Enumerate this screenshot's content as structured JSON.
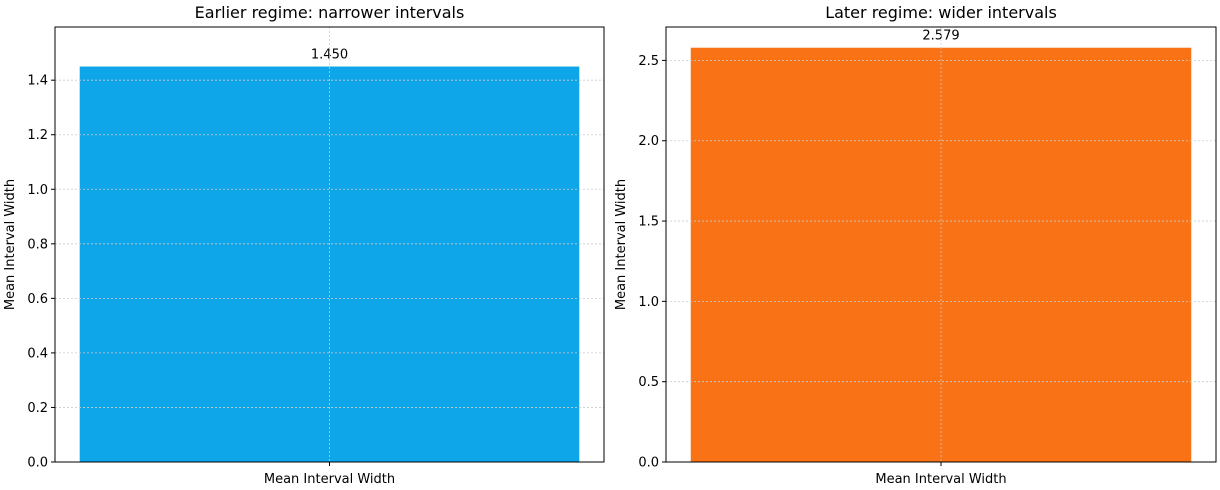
{
  "chart_data": [
    {
      "type": "bar",
      "title": "Earlier regime: narrower intervals",
      "categories": [
        "Mean Interval Width"
      ],
      "values": [
        1.45
      ],
      "value_labels": [
        "1.450"
      ],
      "ylabel": "Mean Interval Width",
      "xlabel": "",
      "ylim": [
        0,
        1.595
      ],
      "yticks": [
        0.0,
        0.2,
        0.4,
        0.6,
        0.8,
        1.0,
        1.2,
        1.4
      ],
      "ytick_labels": [
        "0.0",
        "0.2",
        "0.4",
        "0.6",
        "0.8",
        "1.0",
        "1.2",
        "1.4"
      ],
      "bar_color": "#0ea5e9",
      "grid": true
    },
    {
      "type": "bar",
      "title": "Later regime: wider intervals",
      "categories": [
        "Mean Interval Width"
      ],
      "values": [
        2.579
      ],
      "value_labels": [
        "2.579"
      ],
      "ylabel": "Mean Interval Width",
      "xlabel": "",
      "ylim": [
        0,
        2.708
      ],
      "yticks": [
        0.0,
        0.5,
        1.0,
        1.5,
        2.0,
        2.5
      ],
      "ytick_labels": [
        "0.0",
        "0.5",
        "1.0",
        "1.5",
        "2.0",
        "2.5"
      ],
      "bar_color": "#f97316",
      "grid": true
    }
  ]
}
